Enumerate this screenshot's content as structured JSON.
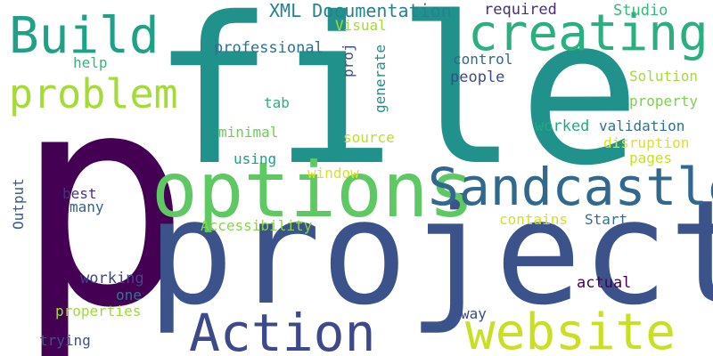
{
  "words": [
    {
      "text": "p",
      "color": "#440154"
    },
    {
      "text": "file",
      "color": "#21918c"
    },
    {
      "text": "project",
      "color": "#3b528b"
    },
    {
      "text": "options",
      "color": "#5ec962"
    },
    {
      "text": "Sandcastle",
      "color": "#31688e"
    },
    {
      "text": "Action",
      "color": "#3e4989"
    },
    {
      "text": "website",
      "color": "#c8e020"
    },
    {
      "text": "creating",
      "color": "#2ab07f"
    },
    {
      "text": "Build",
      "color": "#1fa187"
    },
    {
      "text": "problem",
      "color": "#a5db36"
    },
    {
      "text": "XML Documentation",
      "color": "#26828e"
    },
    {
      "text": "required",
      "color": "#472d7b"
    },
    {
      "text": "Studio",
      "color": "#35b779"
    },
    {
      "text": "Visual",
      "color": "#a5db36"
    },
    {
      "text": "professional",
      "color": "#2c728e"
    },
    {
      "text": "proj",
      "color": "#3b528b"
    },
    {
      "text": "generate",
      "color": "#21918c"
    },
    {
      "text": "control",
      "color": "#31688e"
    },
    {
      "text": "people",
      "color": "#3e4989"
    },
    {
      "text": "help",
      "color": "#35b779"
    },
    {
      "text": "Solution",
      "color": "#a5db36"
    },
    {
      "text": "property",
      "color": "#7ad151"
    },
    {
      "text": "tab",
      "color": "#2ab07f"
    },
    {
      "text": "minimal",
      "color": "#6ece58"
    },
    {
      "text": "source",
      "color": "#bddf26"
    },
    {
      "text": "worked",
      "color": "#22a884"
    },
    {
      "text": "validation",
      "color": "#2c728e"
    },
    {
      "text": "disruption",
      "color": "#dde318"
    },
    {
      "text": "using",
      "color": "#1fa187"
    },
    {
      "text": "pages",
      "color": "#c8e020"
    },
    {
      "text": "window",
      "color": "#dde318"
    },
    {
      "text": "best",
      "color": "#46327e"
    },
    {
      "text": "many",
      "color": "#33638d"
    },
    {
      "text": "Output",
      "color": "#365c8d"
    },
    {
      "text": "Accessibility",
      "color": "#86d549"
    },
    {
      "text": "contains",
      "color": "#d2e21b"
    },
    {
      "text": "Start",
      "color": "#2c728e"
    },
    {
      "text": "working",
      "color": "#414487"
    },
    {
      "text": "actual",
      "color": "#440154"
    },
    {
      "text": "one",
      "color": "#2a788e"
    },
    {
      "text": "properties",
      "color": "#9fda3a"
    },
    {
      "text": "way",
      "color": "#3e4989"
    },
    {
      "text": "trying",
      "color": "#3b528b"
    }
  ]
}
